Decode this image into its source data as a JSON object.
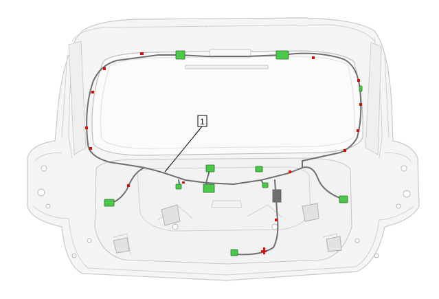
{
  "figure": {
    "kind": "technical-illustration",
    "subject": "tailgate-wiring-harness",
    "callouts": [
      {
        "label": "1"
      }
    ]
  },
  "colors": {
    "background": "#ffffff",
    "panel_stroke": "#c9c9c9",
    "panel_fill": "#f4f4f4",
    "harness": "#6e6e6e",
    "connector_green": "#4cc84c",
    "clip_red": "#d01010",
    "dark_block": "#707070",
    "callout_line": "#000000"
  }
}
